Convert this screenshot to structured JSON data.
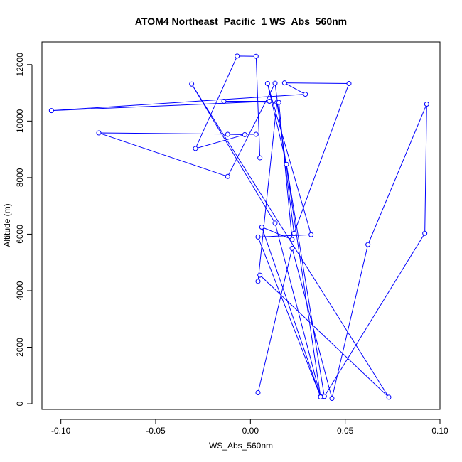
{
  "chart_data": {
    "type": "line",
    "title": "ATOM4 Northeast_Pacific_1 WS_Abs_560nm",
    "xlabel": "WS_Abs_560nm",
    "ylabel": "Altitude (m)",
    "xlim": [
      -0.11,
      0.1
    ],
    "ylim": [
      -200,
      12800
    ],
    "x_ticks": [
      -0.1,
      -0.05,
      0.0,
      0.05,
      0.1
    ],
    "x_tick_labels": [
      "-0.10",
      "-0.05",
      "0.00",
      "0.05",
      "0.10"
    ],
    "y_ticks": [
      0,
      2000,
      4000,
      6000,
      8000,
      10000,
      12000
    ],
    "y_tick_labels": [
      "0",
      "2000",
      "4000",
      "6000",
      "8000",
      "10000",
      "12000"
    ],
    "grid": false,
    "series": [
      {
        "color": "#0000ff",
        "marker": "open-circle",
        "x": [
          0.004,
          0.022,
          0.043,
          0.062,
          0.093,
          0.092,
          0.039,
          0.019,
          0.009,
          0.032,
          0.004,
          0.037,
          0.013,
          -0.031,
          0.073,
          0.005,
          0.004,
          0.014,
          0.037,
          0.006,
          0.022,
          0.015,
          -0.014,
          0.01,
          -0.105,
          0.029,
          0.018,
          0.052,
          0.023,
          0.013,
          -0.012,
          -0.08,
          0.003,
          -0.012,
          -0.003,
          -0.029,
          -0.007,
          0.003,
          0.005
        ],
        "y": [
          390,
          5500,
          190,
          5630,
          10600,
          6030,
          260,
          8470,
          11330,
          5980,
          5900,
          250,
          6390,
          11310,
          230,
          4550,
          4330,
          10660,
          240,
          6250,
          5810,
          10660,
          10700,
          10700,
          10370,
          10950,
          11350,
          11330,
          6030,
          11340,
          8040,
          9580,
          9530,
          9530,
          9520,
          9030,
          12300,
          12290,
          8700
        ]
      }
    ]
  }
}
